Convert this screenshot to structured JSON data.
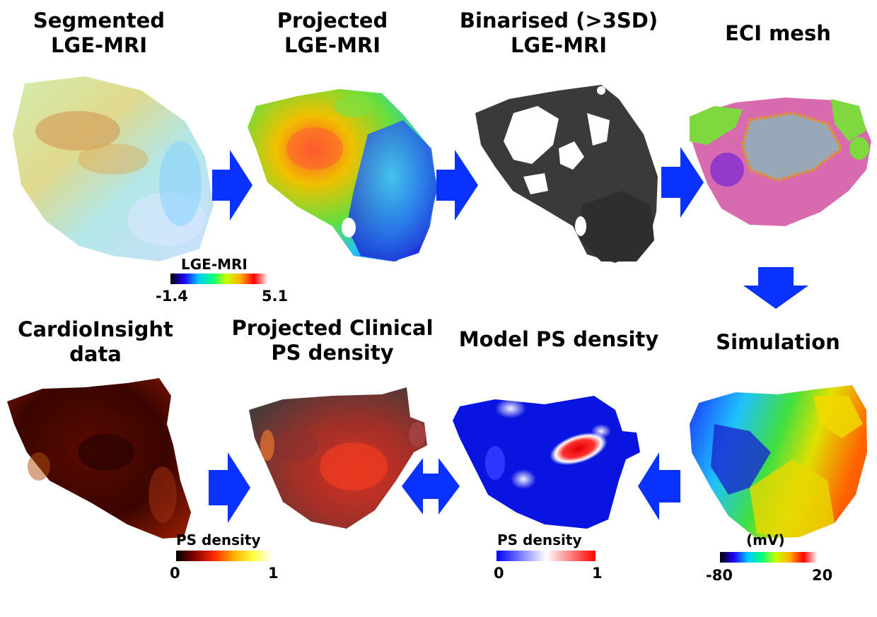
{
  "panels": {
    "segmented": {
      "title_line1": "Segmented",
      "title_line2": "LGE-MRI"
    },
    "projected": {
      "title_line1": "Projected",
      "title_line2": "LGE-MRI"
    },
    "binarised": {
      "title_line1": "Binarised (>3SD)",
      "title_line2": "LGE-MRI"
    },
    "eci_mesh": {
      "title_line1": "ECI mesh"
    },
    "simulation": {
      "title_line1": "Simulation"
    },
    "model_ps": {
      "title_line1": "Model PS density"
    },
    "projected_clinical": {
      "title_line1": "Projected Clinical",
      "title_line2": "PS density"
    },
    "cardioinsight": {
      "title_line1": "CardioInsight",
      "title_line2": "data"
    }
  },
  "colorbars": {
    "lge": {
      "title": "LGE-MRI",
      "min": "-1.4",
      "max": "5.1",
      "colors": [
        "#000000",
        "#1f00ff",
        "#00c8ff",
        "#00ff80",
        "#c8ff00",
        "#ffb000",
        "#ff0000",
        "#ffffff"
      ]
    },
    "ps_clinical": {
      "title": "PS density",
      "min": "0",
      "max": "1",
      "colors": [
        "#000000",
        "#8a0000",
        "#ff2a00",
        "#ffb000",
        "#ffff40",
        "#ffffff"
      ]
    },
    "ps_model": {
      "title": "PS density",
      "min": "0",
      "max": "1",
      "colors": [
        "#0000ff",
        "#ffffff",
        "#ff0000"
      ]
    },
    "voltage": {
      "title": "(mV)",
      "min": "-80",
      "max": "20",
      "colors": [
        "#000000",
        "#1f00ff",
        "#00c8ff",
        "#00ff80",
        "#c8ff00",
        "#ffb000",
        "#ff0000",
        "#ffffff"
      ]
    }
  },
  "colors": {
    "arrow": "#0a32ff"
  }
}
